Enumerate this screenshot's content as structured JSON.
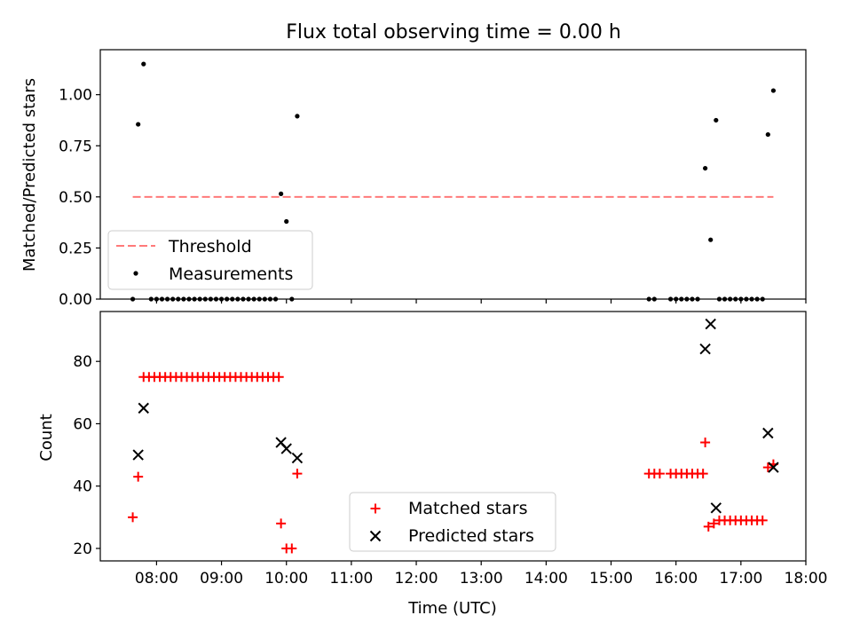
{
  "chart_data": [
    {
      "type": "scatter",
      "title": "Flux total observing time = 0.00 h",
      "xlabel": "",
      "ylabel": "Matched/Predicted stars",
      "xlim": [
        "07:08",
        "18:00"
      ],
      "ylim": [
        0,
        1.22
      ],
      "y_ticks": [
        "0.00",
        "0.25",
        "0.50",
        "0.75",
        "1.00"
      ],
      "legend_position": "lower-left",
      "threshold": {
        "name": "Threshold",
        "value": 0.5,
        "x_start": "07:38",
        "x_end": "17:30",
        "color": "#ff7a7a"
      },
      "measurements": {
        "name": "Measurements",
        "color": "#000000",
        "points": [
          [
            "07:38",
            0.0
          ],
          [
            "07:43",
            0.855
          ],
          [
            "07:48",
            1.15
          ],
          [
            "07:55",
            0.0
          ],
          [
            "08:00",
            0.0
          ],
          [
            "08:05",
            0.0
          ],
          [
            "08:10",
            0.0
          ],
          [
            "08:15",
            0.0
          ],
          [
            "08:20",
            0.0
          ],
          [
            "08:25",
            0.0
          ],
          [
            "08:30",
            0.0
          ],
          [
            "08:35",
            0.0
          ],
          [
            "08:40",
            0.0
          ],
          [
            "08:45",
            0.0
          ],
          [
            "08:50",
            0.0
          ],
          [
            "08:55",
            0.0
          ],
          [
            "09:00",
            0.0
          ],
          [
            "09:05",
            0.0
          ],
          [
            "09:10",
            0.0
          ],
          [
            "09:15",
            0.0
          ],
          [
            "09:20",
            0.0
          ],
          [
            "09:25",
            0.0
          ],
          [
            "09:30",
            0.0
          ],
          [
            "09:35",
            0.0
          ],
          [
            "09:40",
            0.0
          ],
          [
            "09:45",
            0.0
          ],
          [
            "09:50",
            0.0
          ],
          [
            "09:55",
            0.515
          ],
          [
            "10:00",
            0.38
          ],
          [
            "10:05",
            0.0
          ],
          [
            "10:10",
            0.895
          ],
          [
            "15:35",
            0.0
          ],
          [
            "15:40",
            0.0
          ],
          [
            "15:55",
            0.0
          ],
          [
            "16:00",
            0.0
          ],
          [
            "16:05",
            0.0
          ],
          [
            "16:10",
            0.0
          ],
          [
            "16:15",
            0.0
          ],
          [
            "16:20",
            0.0
          ],
          [
            "16:27",
            0.64
          ],
          [
            "16:32",
            0.29
          ],
          [
            "16:37",
            0.875
          ],
          [
            "16:40",
            0.0
          ],
          [
            "16:45",
            0.0
          ],
          [
            "16:50",
            0.0
          ],
          [
            "16:55",
            0.0
          ],
          [
            "17:00",
            0.0
          ],
          [
            "17:05",
            0.0
          ],
          [
            "17:10",
            0.0
          ],
          [
            "17:15",
            0.0
          ],
          [
            "17:20",
            0.0
          ],
          [
            "17:25",
            0.805
          ],
          [
            "17:30",
            1.02
          ]
        ]
      }
    },
    {
      "type": "scatter",
      "title": "",
      "xlabel": "Time (UTC)",
      "ylabel": "Count",
      "xlim": [
        "07:08",
        "18:00"
      ],
      "ylim": [
        16,
        96
      ],
      "y_ticks": [
        "20",
        "40",
        "60",
        "80"
      ],
      "x_ticks": [
        "08:00",
        "09:00",
        "10:00",
        "11:00",
        "12:00",
        "13:00",
        "14:00",
        "15:00",
        "16:00",
        "17:00",
        "18:00"
      ],
      "legend_position": "lower-center",
      "series": [
        {
          "name": "Matched stars",
          "marker": "+",
          "color": "#ff0000",
          "points": [
            [
              "07:38",
              30
            ],
            [
              "07:43",
              43
            ],
            [
              "07:48",
              75
            ],
            [
              "07:53",
              75
            ],
            [
              "07:58",
              75
            ],
            [
              "08:03",
              75
            ],
            [
              "08:08",
              75
            ],
            [
              "08:13",
              75
            ],
            [
              "08:18",
              75
            ],
            [
              "08:23",
              75
            ],
            [
              "08:28",
              75
            ],
            [
              "08:33",
              75
            ],
            [
              "08:38",
              75
            ],
            [
              "08:43",
              75
            ],
            [
              "08:48",
              75
            ],
            [
              "08:53",
              75
            ],
            [
              "08:58",
              75
            ],
            [
              "09:03",
              75
            ],
            [
              "09:08",
              75
            ],
            [
              "09:13",
              75
            ],
            [
              "09:18",
              75
            ],
            [
              "09:23",
              75
            ],
            [
              "09:28",
              75
            ],
            [
              "09:33",
              75
            ],
            [
              "09:38",
              75
            ],
            [
              "09:43",
              75
            ],
            [
              "09:48",
              75
            ],
            [
              "09:53",
              75
            ],
            [
              "09:55",
              28
            ],
            [
              "10:00",
              20
            ],
            [
              "10:05",
              20
            ],
            [
              "10:10",
              44
            ],
            [
              "15:35",
              44
            ],
            [
              "15:40",
              44
            ],
            [
              "15:45",
              44
            ],
            [
              "15:55",
              44
            ],
            [
              "16:00",
              44
            ],
            [
              "16:05",
              44
            ],
            [
              "16:10",
              44
            ],
            [
              "16:15",
              44
            ],
            [
              "16:20",
              44
            ],
            [
              "16:25",
              44
            ],
            [
              "16:27",
              54
            ],
            [
              "16:30",
              27
            ],
            [
              "16:35",
              28
            ],
            [
              "16:40",
              29
            ],
            [
              "16:45",
              29
            ],
            [
              "16:50",
              29
            ],
            [
              "16:55",
              29
            ],
            [
              "17:00",
              29
            ],
            [
              "17:05",
              29
            ],
            [
              "17:10",
              29
            ],
            [
              "17:15",
              29
            ],
            [
              "17:20",
              29
            ],
            [
              "17:25",
              46
            ],
            [
              "17:30",
              47
            ]
          ]
        },
        {
          "name": "Predicted stars",
          "marker": "x",
          "color": "#000000",
          "points": [
            [
              "07:43",
              50
            ],
            [
              "07:48",
              65
            ],
            [
              "09:55",
              54
            ],
            [
              "10:00",
              52
            ],
            [
              "10:10",
              49
            ],
            [
              "16:27",
              84
            ],
            [
              "16:32",
              92
            ],
            [
              "16:37",
              33
            ],
            [
              "17:25",
              57
            ],
            [
              "17:30",
              46
            ]
          ]
        }
      ]
    }
  ]
}
